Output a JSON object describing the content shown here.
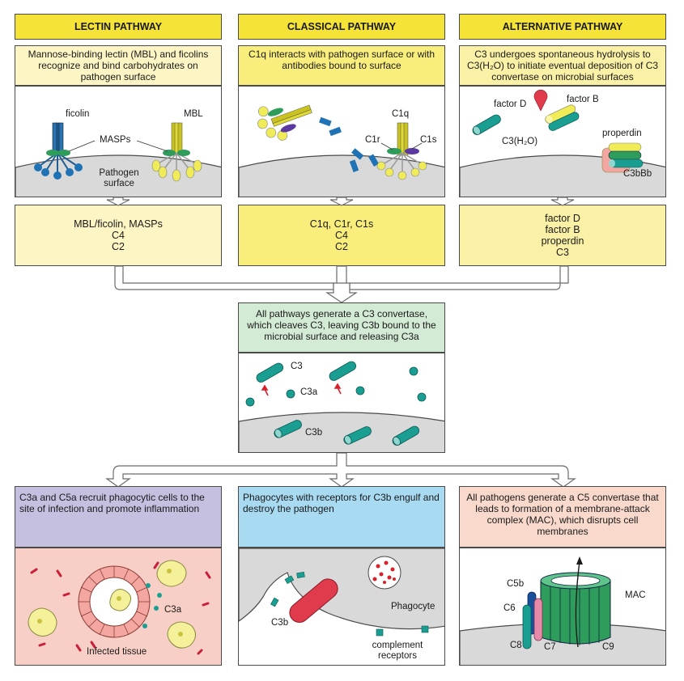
{
  "lectin": {
    "title": "LECTIN PATHWAY",
    "description": "Mannose-binding lectin (MBL) and ficolins recognize and bind carbohydrates on pathogen surface",
    "labels": {
      "ficolin": "ficolin",
      "mbl": "MBL",
      "masps": "MASPs",
      "pathogen_surface": "Pathogen surface"
    },
    "components": [
      "MBL/ficolin, MASPs",
      "C4",
      "C2"
    ]
  },
  "classical": {
    "title": "CLASSICAL PATHWAY",
    "description": "C1q interacts with pathogen surface or with antibodies bound to surface",
    "labels": {
      "c1q": "C1q",
      "c1r": "C1r",
      "c1s": "C1s"
    },
    "components": [
      "C1q, C1r, C1s",
      "C4",
      "C2"
    ]
  },
  "alternative": {
    "title": "ALTERNATIVE PATHWAY",
    "description": "C3 undergoes spontaneous hydrolysis to C3(H₂O) to initiate eventual deposition of C3 convertase on microbial surfaces",
    "labels": {
      "factor_d": "factor D",
      "factor_b": "factor B",
      "c3h2o": "C3(H₂O)",
      "properdin": "properdin",
      "c3bbb": "C3bBb"
    },
    "components": [
      "factor D",
      "factor B",
      "properdin",
      "C3"
    ]
  },
  "convertase": {
    "description": "All pathways generate a C3 convertase, which cleaves C3, leaving C3b bound to the microbial surface and releasing C3a",
    "labels": {
      "c3": "C3",
      "c3a": "C3a",
      "c3b": "C3b"
    }
  },
  "inflammation": {
    "description": "C3a and C5a recruit phagocytic cells to the site of infection and promote inflammation",
    "labels": {
      "c3a": "C3a",
      "infected_tissue": "Infected tissue"
    }
  },
  "phagocytosis": {
    "description": "Phagocytes with receptors for C3b engulf and destroy the pathogen",
    "labels": {
      "c3b": "C3b",
      "phagocyte": "Phagocyte",
      "complement_receptors": "complement receptors"
    }
  },
  "mac": {
    "description": "All pathogens generate a C5 convertase that leads to formation of a membrane-attack complex (MAC), which disrupts cell membranes",
    "labels": {
      "c5b": "C5b",
      "c6": "C6",
      "c7": "C7",
      "c8": "C8",
      "c9": "C9",
      "mac": "MAC"
    }
  },
  "colors": {
    "header": "#f5e437",
    "lectin_bg": "#fdf6c4",
    "classical_bg": "#f9ee7c",
    "alternative_bg": "#faf1a6",
    "convertase_bg": "#d3ead4",
    "inflammation_bg": "#c5bfe0",
    "phagocytosis_bg": "#a8daf2",
    "mac_bg": "#f8d9cc",
    "teal": "#1a9e92",
    "surface": "#d9d9d9"
  }
}
